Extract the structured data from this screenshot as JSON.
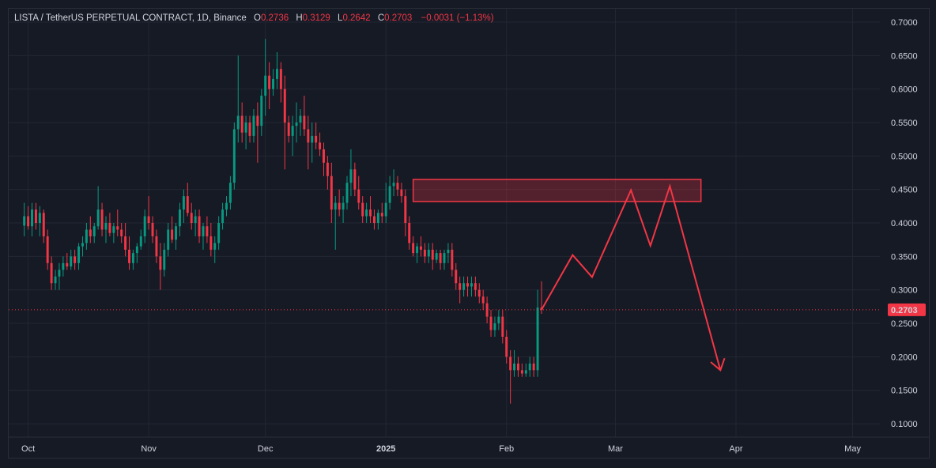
{
  "header": {
    "symbol": "LISTA / TetherUS PERPETUAL CONTRACT, 1D, Binance",
    "o_label": "O",
    "o_value": "0.2736",
    "h_label": "H",
    "h_value": "0.3129",
    "l_label": "L",
    "l_value": "0.2642",
    "c_label": "C",
    "c_value": "0.2703",
    "change": "−0.0031 (−1.13%)"
  },
  "chart_data": {
    "type": "candlestick",
    "title": "LISTA / TetherUS PERPETUAL CONTRACT, 1D, Binance",
    "ylim": [
      0.08,
      0.72
    ],
    "y_ticks": [
      "0.7000",
      "0.6500",
      "0.6000",
      "0.5500",
      "0.5000",
      "0.4500",
      "0.4000",
      "0.3500",
      "0.3000",
      "0.2500",
      "0.2000",
      "0.1500",
      "0.1000"
    ],
    "x_tick_labels": [
      {
        "label": "Oct",
        "date": "2024-10-01"
      },
      {
        "label": "Nov",
        "date": "2024-11-01"
      },
      {
        "label": "Dec",
        "date": "2024-12-01"
      },
      {
        "label": "2025",
        "date": "2025-01-01"
      },
      {
        "label": "Feb",
        "date": "2025-02-01"
      },
      {
        "label": "Mar",
        "date": "2025-03-01"
      },
      {
        "label": "Apr",
        "date": "2025-04-01"
      },
      {
        "label": "May",
        "date": "2025-05-01"
      }
    ],
    "x_start": "2024-09-26",
    "x_end": "2025-05-08",
    "last_price": "0.2703",
    "last_price_value": 0.2703,
    "bull_color": "#089981",
    "bear_color": "#f23645",
    "candles": [
      [
        0.396,
        0.43,
        0.38,
        0.41
      ],
      [
        0.41,
        0.425,
        0.39,
        0.395
      ],
      [
        0.395,
        0.43,
        0.38,
        0.42
      ],
      [
        0.42,
        0.43,
        0.39,
        0.4
      ],
      [
        0.4,
        0.425,
        0.38,
        0.415
      ],
      [
        0.415,
        0.42,
        0.37,
        0.38
      ],
      [
        0.38,
        0.39,
        0.33,
        0.34
      ],
      [
        0.34,
        0.35,
        0.3,
        0.31
      ],
      [
        0.31,
        0.33,
        0.3,
        0.32
      ],
      [
        0.32,
        0.34,
        0.3,
        0.33
      ],
      [
        0.33,
        0.35,
        0.32,
        0.34
      ],
      [
        0.34,
        0.355,
        0.33,
        0.335
      ],
      [
        0.335,
        0.36,
        0.33,
        0.35
      ],
      [
        0.35,
        0.36,
        0.33,
        0.34
      ],
      [
        0.34,
        0.37,
        0.33,
        0.365
      ],
      [
        0.365,
        0.38,
        0.35,
        0.37
      ],
      [
        0.37,
        0.4,
        0.36,
        0.39
      ],
      [
        0.39,
        0.41,
        0.37,
        0.38
      ],
      [
        0.38,
        0.4,
        0.37,
        0.395
      ],
      [
        0.395,
        0.455,
        0.39,
        0.42
      ],
      [
        0.42,
        0.43,
        0.38,
        0.39
      ],
      [
        0.39,
        0.41,
        0.37,
        0.4
      ],
      [
        0.4,
        0.415,
        0.38,
        0.385
      ],
      [
        0.385,
        0.4,
        0.37,
        0.395
      ],
      [
        0.395,
        0.42,
        0.38,
        0.39
      ],
      [
        0.39,
        0.4,
        0.37,
        0.38
      ],
      [
        0.38,
        0.4,
        0.35,
        0.36
      ],
      [
        0.36,
        0.38,
        0.33,
        0.34
      ],
      [
        0.34,
        0.36,
        0.33,
        0.355
      ],
      [
        0.355,
        0.37,
        0.34,
        0.365
      ],
      [
        0.365,
        0.39,
        0.36,
        0.38
      ],
      [
        0.38,
        0.42,
        0.37,
        0.41
      ],
      [
        0.41,
        0.44,
        0.39,
        0.4
      ],
      [
        0.4,
        0.41,
        0.37,
        0.38
      ],
      [
        0.38,
        0.39,
        0.34,
        0.35
      ],
      [
        0.35,
        0.37,
        0.3,
        0.33
      ],
      [
        0.33,
        0.37,
        0.32,
        0.36
      ],
      [
        0.36,
        0.4,
        0.35,
        0.39
      ],
      [
        0.39,
        0.41,
        0.37,
        0.375
      ],
      [
        0.375,
        0.4,
        0.36,
        0.395
      ],
      [
        0.395,
        0.43,
        0.38,
        0.42
      ],
      [
        0.42,
        0.45,
        0.4,
        0.44
      ],
      [
        0.44,
        0.46,
        0.41,
        0.415
      ],
      [
        0.415,
        0.43,
        0.39,
        0.4
      ],
      [
        0.4,
        0.42,
        0.38,
        0.41
      ],
      [
        0.41,
        0.42,
        0.37,
        0.38
      ],
      [
        0.38,
        0.4,
        0.36,
        0.395
      ],
      [
        0.395,
        0.41,
        0.37,
        0.38
      ],
      [
        0.38,
        0.4,
        0.35,
        0.36
      ],
      [
        0.36,
        0.38,
        0.34,
        0.37
      ],
      [
        0.37,
        0.41,
        0.36,
        0.4
      ],
      [
        0.4,
        0.43,
        0.39,
        0.42
      ],
      [
        0.42,
        0.44,
        0.41,
        0.43
      ],
      [
        0.43,
        0.47,
        0.42,
        0.46
      ],
      [
        0.46,
        0.55,
        0.45,
        0.54
      ],
      [
        0.54,
        0.65,
        0.52,
        0.56
      ],
      [
        0.56,
        0.58,
        0.52,
        0.535
      ],
      [
        0.535,
        0.56,
        0.51,
        0.55
      ],
      [
        0.55,
        0.56,
        0.52,
        0.53
      ],
      [
        0.53,
        0.57,
        0.52,
        0.56
      ],
      [
        0.56,
        0.58,
        0.49,
        0.545
      ],
      [
        0.545,
        0.6,
        0.53,
        0.59
      ],
      [
        0.59,
        0.675,
        0.56,
        0.62
      ],
      [
        0.62,
        0.64,
        0.57,
        0.6
      ],
      [
        0.6,
        0.63,
        0.59,
        0.615
      ],
      [
        0.615,
        0.655,
        0.6,
        0.63
      ],
      [
        0.63,
        0.64,
        0.58,
        0.6
      ],
      [
        0.6,
        0.62,
        0.48,
        0.55
      ],
      [
        0.55,
        0.56,
        0.52,
        0.53
      ],
      [
        0.53,
        0.56,
        0.5,
        0.545
      ],
      [
        0.545,
        0.58,
        0.52,
        0.55
      ],
      [
        0.55,
        0.57,
        0.53,
        0.56
      ],
      [
        0.56,
        0.59,
        0.53,
        0.54
      ],
      [
        0.54,
        0.56,
        0.48,
        0.52
      ],
      [
        0.52,
        0.55,
        0.49,
        0.53
      ],
      [
        0.53,
        0.55,
        0.51,
        0.52
      ],
      [
        0.52,
        0.535,
        0.5,
        0.51
      ],
      [
        0.51,
        0.52,
        0.47,
        0.49
      ],
      [
        0.49,
        0.5,
        0.45,
        0.47
      ],
      [
        0.47,
        0.49,
        0.4,
        0.42
      ],
      [
        0.42,
        0.44,
        0.36,
        0.43
      ],
      [
        0.43,
        0.45,
        0.41,
        0.42
      ],
      [
        0.42,
        0.44,
        0.4,
        0.43
      ],
      [
        0.43,
        0.47,
        0.42,
        0.46
      ],
      [
        0.46,
        0.51,
        0.44,
        0.48
      ],
      [
        0.48,
        0.49,
        0.44,
        0.45
      ],
      [
        0.45,
        0.47,
        0.42,
        0.43
      ],
      [
        0.43,
        0.44,
        0.4,
        0.41
      ],
      [
        0.41,
        0.43,
        0.4,
        0.42
      ],
      [
        0.42,
        0.44,
        0.4,
        0.41
      ],
      [
        0.41,
        0.42,
        0.39,
        0.4
      ],
      [
        0.4,
        0.42,
        0.39,
        0.415
      ],
      [
        0.415,
        0.43,
        0.4,
        0.41
      ],
      [
        0.41,
        0.46,
        0.4,
        0.43
      ],
      [
        0.43,
        0.47,
        0.42,
        0.455
      ],
      [
        0.455,
        0.48,
        0.44,
        0.46
      ],
      [
        0.46,
        0.47,
        0.44,
        0.45
      ],
      [
        0.45,
        0.46,
        0.43,
        0.44
      ],
      [
        0.44,
        0.45,
        0.38,
        0.4
      ],
      [
        0.4,
        0.41,
        0.36,
        0.37
      ],
      [
        0.37,
        0.38,
        0.35,
        0.355
      ],
      [
        0.355,
        0.37,
        0.34,
        0.365
      ],
      [
        0.365,
        0.38,
        0.35,
        0.36
      ],
      [
        0.36,
        0.37,
        0.34,
        0.35
      ],
      [
        0.35,
        0.37,
        0.34,
        0.36
      ],
      [
        0.36,
        0.37,
        0.33,
        0.345
      ],
      [
        0.345,
        0.36,
        0.34,
        0.355
      ],
      [
        0.355,
        0.36,
        0.33,
        0.34
      ],
      [
        0.34,
        0.36,
        0.33,
        0.355
      ],
      [
        0.355,
        0.37,
        0.34,
        0.36
      ],
      [
        0.36,
        0.37,
        0.32,
        0.33
      ],
      [
        0.33,
        0.34,
        0.3,
        0.31
      ],
      [
        0.31,
        0.32,
        0.28,
        0.3
      ],
      [
        0.3,
        0.32,
        0.29,
        0.31
      ],
      [
        0.31,
        0.32,
        0.29,
        0.305
      ],
      [
        0.305,
        0.32,
        0.29,
        0.31
      ],
      [
        0.31,
        0.32,
        0.29,
        0.3
      ],
      [
        0.3,
        0.31,
        0.28,
        0.29
      ],
      [
        0.29,
        0.3,
        0.27,
        0.28
      ],
      [
        0.28,
        0.29,
        0.25,
        0.26
      ],
      [
        0.26,
        0.27,
        0.23,
        0.24
      ],
      [
        0.24,
        0.26,
        0.23,
        0.25
      ],
      [
        0.25,
        0.27,
        0.24,
        0.26
      ],
      [
        0.26,
        0.27,
        0.22,
        0.23
      ],
      [
        0.23,
        0.24,
        0.19,
        0.2
      ],
      [
        0.2,
        0.21,
        0.13,
        0.18
      ],
      [
        0.18,
        0.21,
        0.17,
        0.19
      ],
      [
        0.19,
        0.2,
        0.17,
        0.18
      ],
      [
        0.18,
        0.19,
        0.17,
        0.175
      ],
      [
        0.175,
        0.19,
        0.17,
        0.18
      ],
      [
        0.18,
        0.2,
        0.17,
        0.19
      ],
      [
        0.19,
        0.2,
        0.17,
        0.18
      ],
      [
        0.18,
        0.3,
        0.17,
        0.2736
      ],
      [
        0.2736,
        0.3129,
        0.2642,
        0.2703
      ]
    ],
    "resistance_zone": {
      "y_low": 0.432,
      "y_high": 0.465,
      "date_from": "2025-01-08",
      "date_to": "2025-03-23"
    },
    "projection_path": [
      {
        "date": "2025-02-10",
        "y": 0.2703
      },
      {
        "date": "2025-02-18",
        "y": 0.352
      },
      {
        "date": "2025-02-23",
        "y": 0.319
      },
      {
        "date": "2025-03-05",
        "y": 0.449
      },
      {
        "date": "2025-03-10",
        "y": 0.366
      },
      {
        "date": "2025-03-15",
        "y": 0.455
      },
      {
        "date": "2025-03-28",
        "y": 0.18
      }
    ],
    "grid": true
  }
}
